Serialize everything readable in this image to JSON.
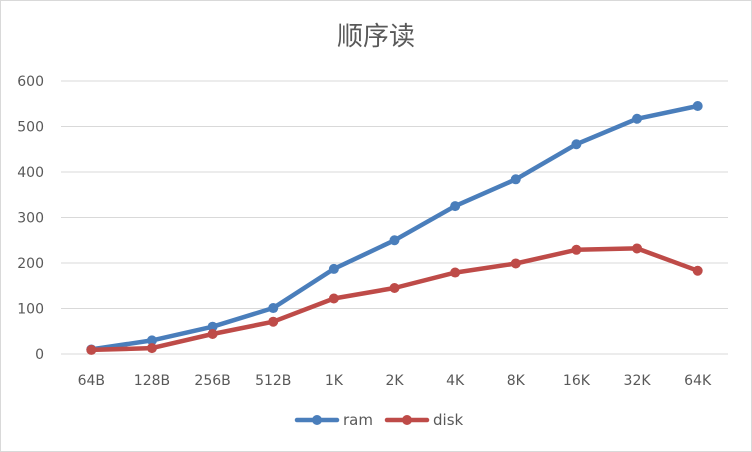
{
  "chart_data": {
    "type": "line",
    "title": "顺序读",
    "xlabel": "",
    "ylabel": "",
    "ylim": [
      0,
      600
    ],
    "yticks": [
      0,
      100,
      200,
      300,
      400,
      500,
      600
    ],
    "grid": true,
    "legend_position": "bottom",
    "categories": [
      "64B",
      "128B",
      "256B",
      "512B",
      "1K",
      "2K",
      "4K",
      "8K",
      "16K",
      "32K",
      "64K"
    ],
    "series": [
      {
        "name": "ram",
        "color": "#4a7ebb",
        "values": [
          10,
          30,
          60,
          101,
          187,
          250,
          325,
          384,
          461,
          517,
          545
        ]
      },
      {
        "name": "disk",
        "color": "#be4b48",
        "values": [
          9,
          13,
          44,
          71,
          122,
          145,
          179,
          199,
          229,
          232,
          183
        ]
      }
    ]
  }
}
